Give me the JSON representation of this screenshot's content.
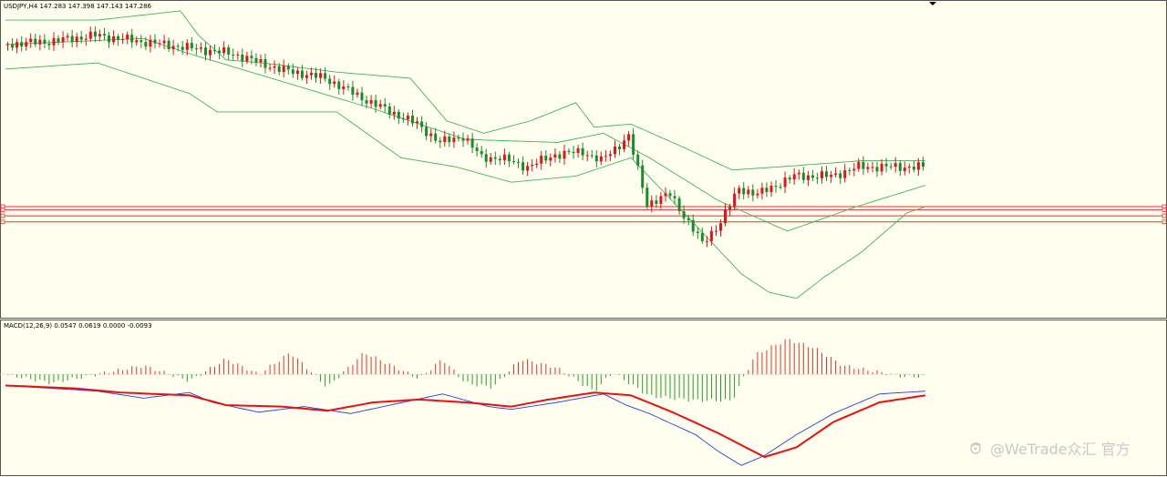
{
  "colors": {
    "background": "#fffff0",
    "bull_candle": "#e8101a",
    "bear_candle": "#1d8a2a",
    "bollinger": "#48b060",
    "hline": "#e83030",
    "macd_hist_pos": "#e83030",
    "macd_hist_neg": "#2a9a2a",
    "macd_line": "#2040e0",
    "signal_line": "#e81010",
    "border": "#555555",
    "watermark": "#c8c8c8"
  },
  "main_panel": {
    "header": "USDJPY,H4  147.283 147.398 147.143 147.286"
  },
  "macd_panel": {
    "header": "MACD(12,26,9) 0.0547 0.0619 0.0000 -0.0093"
  },
  "watermark": {
    "icon": "weibo-icon",
    "text": "@WeTrade众汇 官方"
  },
  "chart_data": [
    {
      "type": "candlestick",
      "symbol": "USDJPY",
      "timeframe": "H4",
      "series": [
        {
          "name": "price",
          "trend": [
            [
              0,
              11
            ],
            [
              10,
              10
            ],
            [
              20,
              8
            ],
            [
              25,
              9
            ],
            [
              40,
              12
            ],
            [
              50,
              14
            ],
            [
              60,
              19
            ],
            [
              70,
              22
            ],
            [
              80,
              30
            ],
            [
              90,
              37
            ],
            [
              95,
              43
            ],
            [
              100,
              41
            ],
            [
              104,
              48
            ],
            [
              108,
              48
            ],
            [
              114,
              51
            ],
            [
              120,
              47
            ],
            [
              126,
              46
            ],
            [
              130,
              49
            ],
            [
              136,
              41
            ],
            [
              140,
              63
            ],
            [
              145,
              60
            ],
            [
              152,
              76
            ],
            [
              156,
              69
            ],
            [
              160,
              58
            ],
            [
              164,
              60
            ],
            [
              168,
              57
            ],
            [
              172,
              54
            ],
            [
              180,
              54
            ],
            [
              186,
              51
            ],
            [
              200,
              51
            ]
          ]
        },
        {
          "name": "bollinger_upper",
          "trend": [
            [
              0,
              3
            ],
            [
              20,
              3
            ],
            [
              38,
              0
            ],
            [
              42,
              8
            ],
            [
              48,
              16
            ],
            [
              56,
              17
            ],
            [
              72,
              20
            ],
            [
              88,
              22
            ],
            [
              96,
              36
            ],
            [
              104,
              40
            ],
            [
              114,
              36
            ],
            [
              124,
              30
            ],
            [
              128,
              38
            ],
            [
              136,
              37
            ],
            [
              148,
              45
            ],
            [
              158,
              52
            ],
            [
              168,
              51
            ],
            [
              186,
              49
            ],
            [
              200,
              49
            ]
          ]
        },
        {
          "name": "bollinger_lower",
          "trend": [
            [
              0,
              19
            ],
            [
              20,
              17
            ],
            [
              40,
              27
            ],
            [
              46,
              33
            ],
            [
              58,
              33
            ],
            [
              72,
              33
            ],
            [
              86,
              48
            ],
            [
              98,
              51
            ],
            [
              110,
              56
            ],
            [
              124,
              54
            ],
            [
              136,
              48
            ],
            [
              150,
              70
            ],
            [
              160,
              86
            ],
            [
              166,
              92
            ],
            [
              172,
              94
            ],
            [
              178,
              87
            ],
            [
              186,
              79
            ],
            [
              196,
              66
            ],
            [
              200,
              64
            ]
          ]
        },
        {
          "name": "bollinger_middle",
          "trend": [
            [
              0,
              11
            ],
            [
              30,
              9
            ],
            [
              40,
              14
            ],
            [
              60,
              23
            ],
            [
              80,
              32
            ],
            [
              100,
              42
            ],
            [
              120,
              43
            ],
            [
              130,
              40
            ],
            [
              140,
              48
            ],
            [
              155,
              62
            ],
            [
              170,
              72
            ],
            [
              185,
              64
            ],
            [
              200,
              57
            ]
          ]
        }
      ],
      "horizontal_lines": [
        4,
        5,
        7,
        9
      ],
      "candle_count": 200,
      "ylim_relative": [
        0,
        100
      ]
    },
    {
      "type": "macd",
      "params": [
        12,
        26,
        9
      ],
      "values": {
        "macd": 0.0547,
        "signal": 0.0619,
        "hist": 0.0,
        "diff": -0.0093
      },
      "series": [
        {
          "name": "macd_line",
          "trend": [
            [
              0,
              38
            ],
            [
              10,
              40
            ],
            [
              20,
              42
            ],
            [
              30,
              47
            ],
            [
              40,
              43
            ],
            [
              45,
              50
            ],
            [
              55,
              57
            ],
            [
              65,
              53
            ],
            [
              75,
              58
            ],
            [
              85,
              51
            ],
            [
              95,
              44
            ],
            [
              105,
              53
            ],
            [
              110,
              55
            ],
            [
              120,
              50
            ],
            [
              130,
              44
            ],
            [
              135,
              52
            ],
            [
              140,
              58
            ],
            [
              150,
              73
            ],
            [
              155,
              85
            ],
            [
              160,
              95
            ],
            [
              165,
              88
            ],
            [
              172,
              73
            ],
            [
              180,
              58
            ],
            [
              190,
              44
            ],
            [
              200,
              42
            ]
          ]
        },
        {
          "name": "signal_line",
          "trend": [
            [
              0,
              38
            ],
            [
              15,
              40
            ],
            [
              25,
              43
            ],
            [
              40,
              45
            ],
            [
              48,
              52
            ],
            [
              60,
              53
            ],
            [
              70,
              56
            ],
            [
              80,
              50
            ],
            [
              90,
              48
            ],
            [
              100,
              50
            ],
            [
              110,
              53
            ],
            [
              118,
              48
            ],
            [
              128,
              43
            ],
            [
              136,
              45
            ],
            [
              145,
              57
            ],
            [
              155,
              72
            ],
            [
              165,
              89
            ],
            [
              172,
              82
            ],
            [
              180,
              64
            ],
            [
              190,
              50
            ],
            [
              200,
              45
            ]
          ]
        },
        {
          "name": "histogram",
          "trend": [
            [
              0,
              0
            ],
            [
              10,
              -4
            ],
            [
              30,
              4
            ],
            [
              40,
              -3
            ],
            [
              48,
              7
            ],
            [
              55,
              0
            ],
            [
              62,
              10
            ],
            [
              70,
              -6
            ],
            [
              78,
              10
            ],
            [
              85,
              3
            ],
            [
              90,
              -2
            ],
            [
              95,
              7
            ],
            [
              100,
              -4
            ],
            [
              106,
              -6
            ],
            [
              112,
              7
            ],
            [
              120,
              3
            ],
            [
              128,
              -8
            ],
            [
              132,
              1
            ],
            [
              140,
              -10
            ],
            [
              150,
              -12
            ],
            [
              158,
              -12
            ],
            [
              163,
              9
            ],
            [
              170,
              16
            ],
            [
              176,
              12
            ],
            [
              182,
              4
            ],
            [
              190,
              1
            ],
            [
              195,
              -1
            ],
            [
              200,
              -1
            ]
          ]
        }
      ],
      "zero_line": true,
      "ylim_relative": [
        0,
        100
      ]
    }
  ]
}
